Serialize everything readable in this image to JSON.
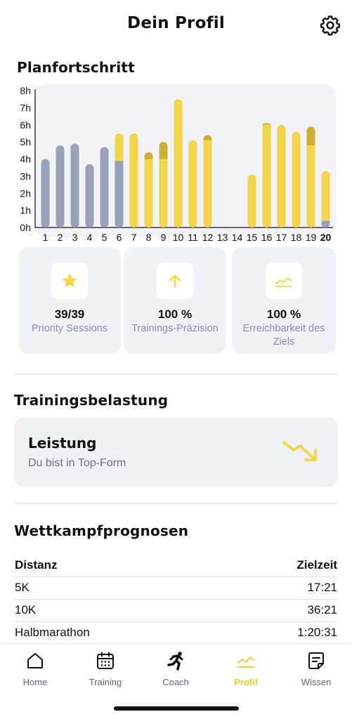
{
  "header": {
    "title": "Dein Profil",
    "settings_icon": "gear-icon"
  },
  "plan": {
    "title": "Planfortschritt"
  },
  "colors": {
    "grey": "#99a0ba",
    "yellow": "#f2d54b",
    "gold": "#cdb033",
    "muted": "#8a91a6"
  },
  "chart_data": {
    "type": "bar",
    "stacked": true,
    "ylim": [
      0,
      8
    ],
    "yticks": [
      "0h",
      "1h",
      "2h",
      "3h",
      "4h",
      "5h",
      "6h",
      "7h",
      "8h"
    ],
    "categories": [
      "1",
      "2",
      "3",
      "4",
      "5",
      "6",
      "7",
      "8",
      "9",
      "10",
      "11",
      "12",
      "13",
      "14",
      "15",
      "16",
      "17",
      "18",
      "19",
      "20"
    ],
    "current": "20",
    "series": [
      {
        "color": "grey",
        "values": [
          4.0,
          4.8,
          4.9,
          3.7,
          4.7,
          3.9,
          0,
          0,
          0,
          0,
          0,
          0,
          0,
          0,
          0,
          0,
          0,
          0,
          0,
          0.4
        ]
      },
      {
        "color": "yellow",
        "values": [
          0,
          0,
          0,
          0,
          0,
          1.6,
          5.5,
          4.0,
          4.0,
          7.5,
          5.1,
          5.1,
          0,
          0,
          3.1,
          6.0,
          6.0,
          5.6,
          4.8,
          2.9
        ]
      },
      {
        "color": "gold",
        "values": [
          0,
          0,
          0,
          0,
          0,
          0,
          0,
          0.4,
          1.0,
          0,
          0,
          0.3,
          0,
          0,
          0,
          0.1,
          0,
          0,
          1.1,
          0
        ]
      }
    ]
  },
  "stats": [
    {
      "icon": "star-icon",
      "value": "39/39",
      "label": "Priority Sessions"
    },
    {
      "icon": "arrow-up-icon",
      "value": "100 %",
      "label": "Trainings-Präzision"
    },
    {
      "icon": "trend-line-icon",
      "value": "100 %",
      "label": "Erreichbarkeit des Ziels"
    }
  ],
  "load": {
    "title": "Trainingsbelastung",
    "card_title": "Leistung",
    "card_subtitle": "Du bist in Top-Form",
    "icon": "trend-down-arrow-icon"
  },
  "predictions": {
    "title": "Wettkampfprognosen",
    "col1": "Distanz",
    "col2": "Zielzeit",
    "rows": [
      {
        "distance": "5K",
        "time": "17:21"
      },
      {
        "distance": "10K",
        "time": "36:21"
      },
      {
        "distance": "Halbmarathon",
        "time": "1:20:31"
      }
    ]
  },
  "tabs": [
    {
      "label": "Home",
      "icon": "home-icon"
    },
    {
      "label": "Training",
      "icon": "calendar-icon"
    },
    {
      "label": "Coach",
      "icon": "runner-icon"
    },
    {
      "label": "Profil",
      "icon": "chart-icon",
      "active": true
    },
    {
      "label": "Wissen",
      "icon": "document-icon"
    }
  ]
}
